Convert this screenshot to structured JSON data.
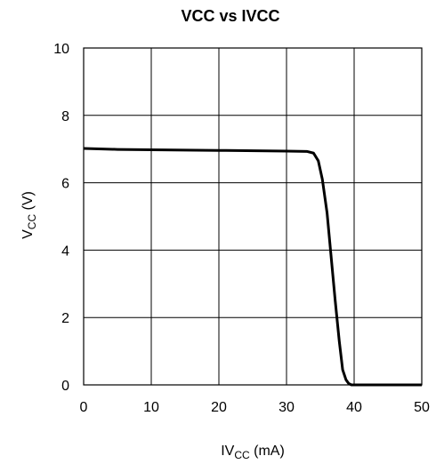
{
  "chart_data": {
    "type": "line",
    "title": "VCC vs IVCC",
    "xlabel_main": "IV",
    "xlabel_sub": "CC",
    "xlabel_unit": " (mA)",
    "ylabel_main": "V",
    "ylabel_sub": "CC",
    "ylabel_unit": " (V)",
    "xlim": [
      0,
      50
    ],
    "ylim": [
      0,
      10
    ],
    "grid": true,
    "x_ticks": [
      0,
      10,
      20,
      30,
      40,
      50
    ],
    "y_ticks": [
      0,
      2,
      4,
      6,
      8,
      10
    ],
    "series": [
      {
        "x": [
          0,
          5,
          10,
          20,
          30,
          33,
          34,
          34.7,
          35.3,
          36.0,
          36.6,
          37.2,
          37.8,
          38.3,
          38.8,
          39.2,
          39.6,
          40,
          45,
          50
        ],
        "y": [
          7.02,
          6.99,
          6.98,
          6.96,
          6.94,
          6.93,
          6.88,
          6.65,
          6.1,
          5.1,
          3.8,
          2.5,
          1.3,
          0.45,
          0.15,
          0.04,
          0.0,
          0.0,
          0.0,
          0.0
        ]
      }
    ]
  }
}
